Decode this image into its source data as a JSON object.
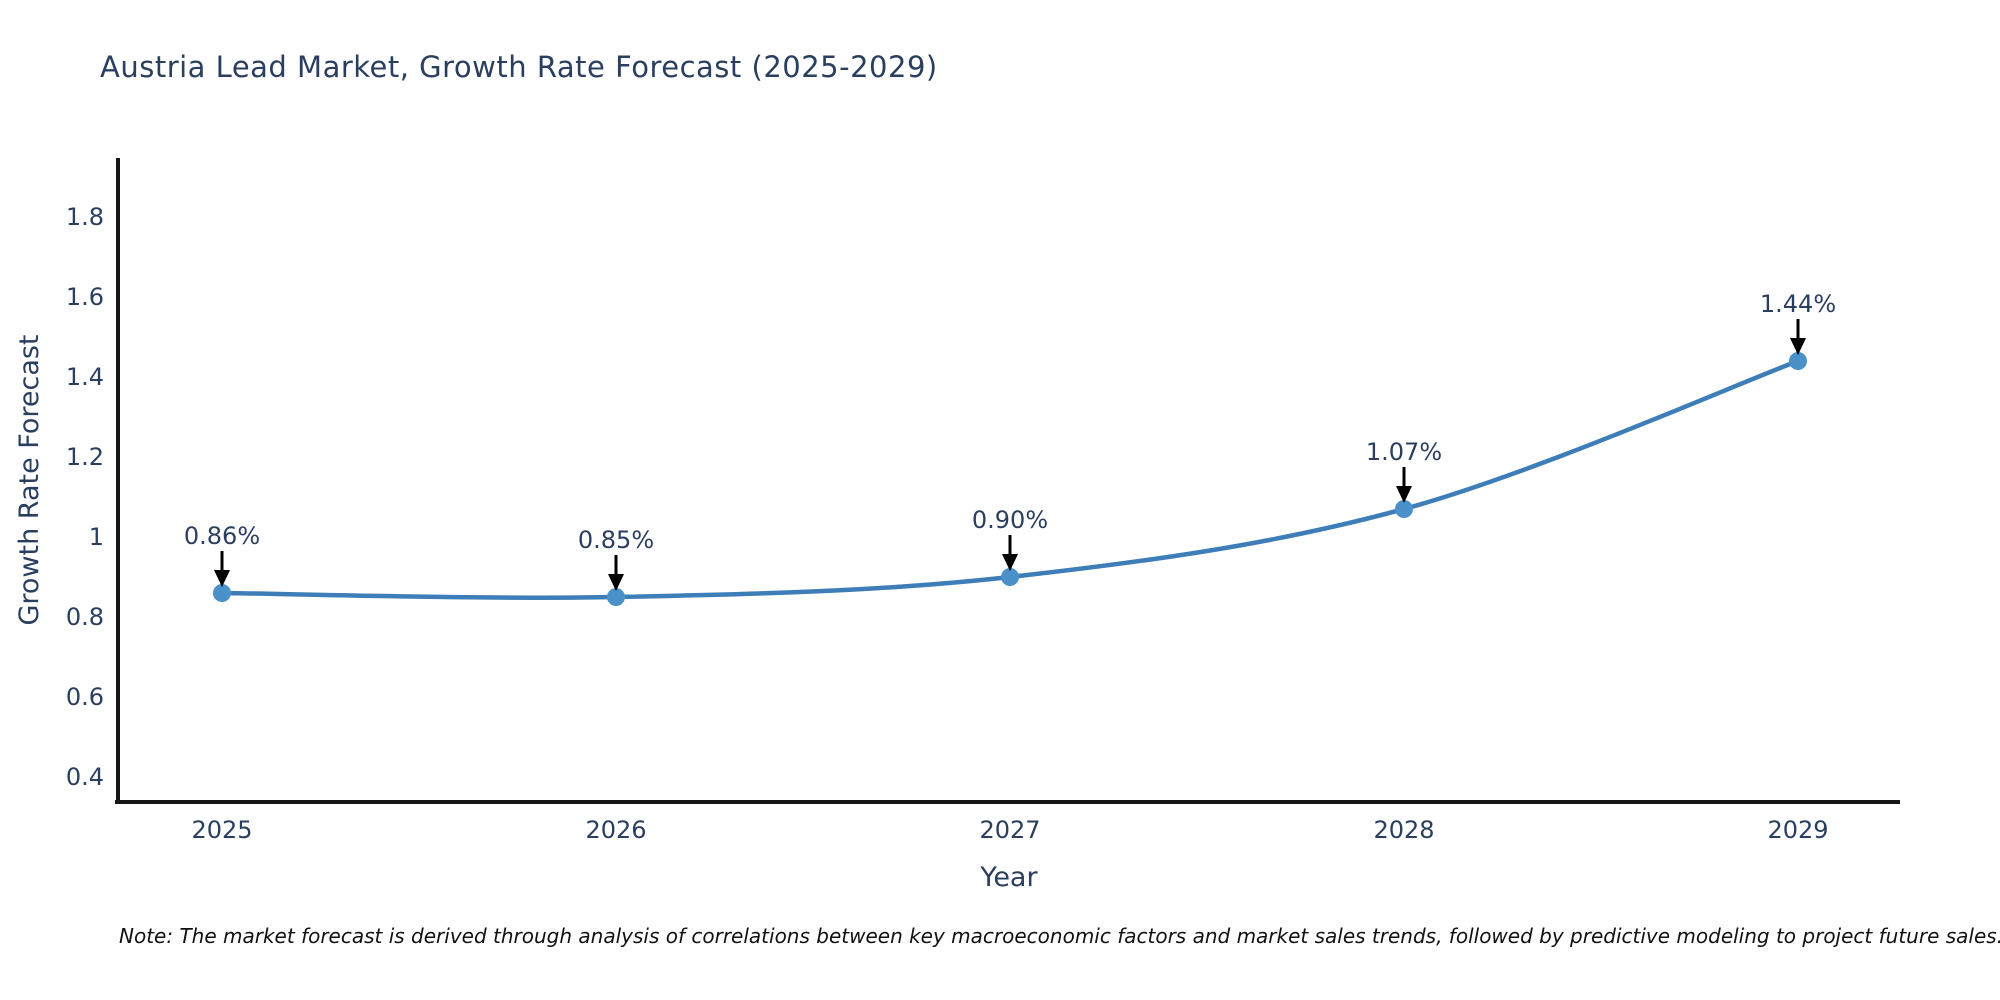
{
  "page": {
    "title": "Austria Lead Market, Growth Rate Forecast (2025-2029)",
    "note": "Note: The market forecast is derived through analysis of correlations between key macroeconomic factors and market sales trends, followed by predictive modeling to project future sales."
  },
  "chart_data": {
    "type": "line",
    "title": "Austria Lead Market, Growth Rate Forecast (2025-2029)",
    "xlabel": "Year",
    "ylabel": "Growth Rate Forecast",
    "categories": [
      "2025",
      "2026",
      "2027",
      "2028",
      "2029"
    ],
    "series": [
      {
        "name": "Growth Rate Forecast",
        "values": [
          0.86,
          0.85,
          0.9,
          1.07,
          1.44
        ],
        "point_labels": [
          "0.86%",
          "0.85%",
          "0.90%",
          "1.07%",
          "1.44%"
        ]
      }
    ],
    "yticks": [
      0.4,
      0.6,
      0.8,
      1,
      1.2,
      1.4,
      1.6,
      1.8
    ],
    "ylim": [
      0.3375,
      1.9425
    ],
    "grid": false,
    "legend_position": "none",
    "line_shape": "spline",
    "annotation_style": "arrow-down-to-point",
    "colors": {
      "line": "#3d7eb8",
      "marker": "#4a90c9",
      "axis": "#161616",
      "text": "#2a3f5f",
      "annotation_text": "#2a3f5f",
      "annotation_arrow": "#000000",
      "note_text": "#111111",
      "background": "#ffffff"
    }
  }
}
